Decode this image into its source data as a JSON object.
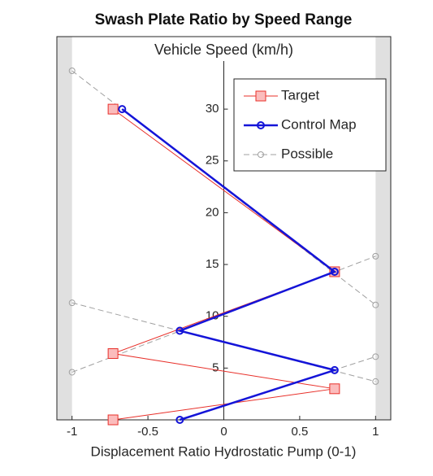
{
  "chart_data": {
    "type": "line",
    "title": "Swash Plate Ratio by Speed Range",
    "ylabel": "Vehicle Speed (km/h)",
    "xlabel": "Displacement Ratio Hydrostatic Pump (0-1)",
    "xlim": [
      -1.1,
      1.1
    ],
    "ylim": [
      0,
      37
    ],
    "xticks": [
      -1,
      -0.5,
      0,
      0.5,
      1
    ],
    "yticks": [
      5,
      10,
      15,
      20,
      25,
      30
    ],
    "limits": [
      -1,
      1
    ],
    "legend": "upper right",
    "series": [
      {
        "name": "Target",
        "color": "#e8302a",
        "marker": "square",
        "x": [
          -0.73,
          0.73,
          -0.73,
          0.73,
          -0.73
        ],
        "values": [
          30,
          14.3,
          6.4,
          3.0,
          0
        ]
      },
      {
        "name": "Control Map",
        "color": "#1414d8",
        "marker": "circle",
        "x": [
          -0.67,
          0.73,
          -0.29,
          0.73,
          -0.29
        ],
        "values": [
          30,
          14.3,
          8.6,
          4.8,
          0
        ]
      },
      {
        "name": "Possible",
        "color": "#a0a0a0",
        "marker": "circle",
        "dashed": true,
        "x": [
          -1,
          1,
          null,
          -1,
          1,
          null,
          -1,
          1,
          null,
          -0.29,
          1
        ],
        "values": [
          33.7,
          11.1,
          null,
          4.6,
          15.8,
          null,
          11.3,
          3.7,
          null,
          0,
          6.1
        ]
      }
    ]
  }
}
